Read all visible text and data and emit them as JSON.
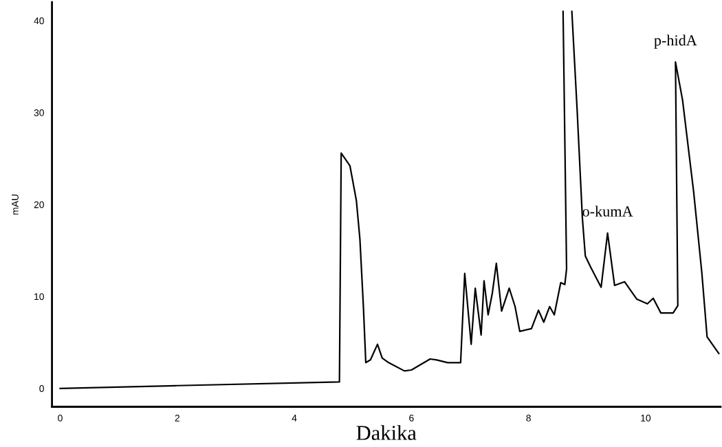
{
  "chart_data": {
    "type": "line",
    "xlabel": "Dakika",
    "ylabel": "mAU",
    "xlim": [
      -0.14,
      11.28
    ],
    "ylim": [
      -2,
      42
    ],
    "xticks": [
      0,
      2,
      4,
      6,
      8,
      10
    ],
    "yticks": [
      0,
      10,
      20,
      30,
      40
    ],
    "grid": false,
    "legend": false,
    "marker": "none",
    "line_style": "solid",
    "series": [
      {
        "color": "#000000",
        "x": [
          0,
          2.0,
          4.77,
          4.8,
          4.95,
          5.06,
          5.12,
          5.18,
          5.22,
          5.3,
          5.42,
          5.5,
          5.61,
          5.88,
          6.0,
          6.32,
          6.43,
          6.62,
          6.84,
          6.91,
          7.02,
          7.09,
          7.19,
          7.24,
          7.31,
          7.38,
          7.45,
          7.54,
          7.67,
          7.77,
          7.85,
          8.05,
          8.17,
          8.26,
          8.36,
          8.44,
          8.55,
          8.62,
          8.65,
          8.59
        ],
        "values": [
          0,
          0.3,
          0.7,
          25.6,
          24.2,
          20.4,
          16.2,
          8.8,
          2.8,
          3.1,
          4.8,
          3.3,
          2.8,
          1.9,
          2.0,
          3.2,
          3.1,
          2.8,
          2.8,
          12.5,
          4.8,
          10.9,
          5.8,
          11.7,
          8.0,
          10.3,
          13.6,
          8.4,
          10.9,
          8.9,
          6.2,
          6.5,
          8.5,
          7.2,
          8.9,
          8.0,
          11.5,
          11.3,
          13.0,
          41
        ]
      },
      {
        "color": "#000000",
        "x": [
          8.74,
          8.83,
          8.92,
          8.97,
          9.06,
          9.24,
          9.35,
          9.47,
          9.64,
          9.85,
          10.03,
          10.13,
          10.26,
          10.47,
          10.55,
          10.51,
          10.63,
          10.82,
          10.96,
          11.05,
          11.25
        ],
        "values": [
          41,
          30.3,
          18.5,
          14.4,
          13.2,
          11.0,
          16.9,
          11.2,
          11.6,
          9.7,
          9.2,
          9.8,
          8.2,
          8.2,
          9.0,
          35.5,
          31.4,
          21.4,
          12.6,
          5.6,
          3.8
        ]
      }
    ],
    "annotations": [
      {
        "text": "o-kumA",
        "x": 9.35,
        "y": 16.9
      },
      {
        "text": "p-hidA",
        "x": 10.51,
        "y": 35.5
      }
    ]
  }
}
